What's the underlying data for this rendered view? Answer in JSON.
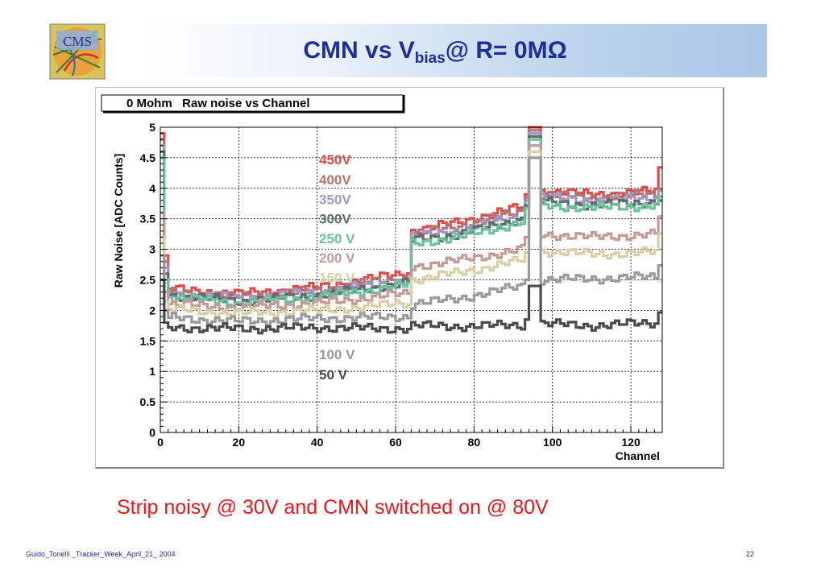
{
  "slide": {
    "title_main": "CMN vs V",
    "title_sub": "bias",
    "title_tail": "@ R= 0MΩ",
    "logo_text": "CMS",
    "caption": "Strip noisy @ 30V and CMN switched on @ 80V",
    "footer": "Guido_Tonelli _Tracker_Week_April_21_ 2004",
    "page_number": "22"
  },
  "chart_data": {
    "type": "line",
    "title": "0 Mohm   Raw noise vs Channel",
    "xlabel": "Channel",
    "ylabel": "Raw Noise [ADC Counts]",
    "xlim": [
      0,
      128
    ],
    "ylim": [
      0,
      5
    ],
    "x_ticks": [
      0,
      20,
      40,
      60,
      80,
      100,
      120
    ],
    "y_ticks": [
      0,
      0.5,
      1,
      1.5,
      2,
      2.5,
      3,
      3.5,
      4,
      4.5,
      5
    ],
    "y_tick_labels": [
      "0",
      "0.5",
      "1",
      "1.5",
      "2",
      "2.5",
      "3",
      "3.5",
      "4",
      "4.5",
      "5"
    ],
    "grid": true,
    "step": true,
    "legend_position": "center, stacked labels",
    "series": [
      {
        "name": "450V",
        "color": "#e04a4a",
        "anchors": [
          [
            0,
            4.9
          ],
          [
            1,
            2.9
          ],
          [
            2,
            2.35
          ],
          [
            20,
            2.27
          ],
          [
            40,
            2.38
          ],
          [
            63,
            2.62
          ],
          [
            64,
            3.3
          ],
          [
            76,
            3.45
          ],
          [
            92,
            3.7
          ],
          [
            93,
            3.9
          ],
          [
            94,
            5.0
          ],
          [
            96,
            5.0
          ],
          [
            97,
            3.95
          ],
          [
            110,
            3.9
          ],
          [
            126,
            3.95
          ],
          [
            127,
            4.3
          ]
        ]
      },
      {
        "name": "400V",
        "color": "#b87070",
        "anchors": [
          [
            0,
            4.8
          ],
          [
            1,
            2.8
          ],
          [
            2,
            2.3
          ],
          [
            20,
            2.22
          ],
          [
            40,
            2.33
          ],
          [
            63,
            2.55
          ],
          [
            64,
            3.25
          ],
          [
            76,
            3.38
          ],
          [
            92,
            3.62
          ],
          [
            93,
            3.85
          ],
          [
            94,
            4.95
          ],
          [
            96,
            4.95
          ],
          [
            97,
            3.9
          ],
          [
            110,
            3.85
          ],
          [
            126,
            3.9
          ],
          [
            127,
            4.05
          ]
        ]
      },
      {
        "name": "350V",
        "color": "#9f98c4",
        "anchors": [
          [
            0,
            4.7
          ],
          [
            1,
            2.7
          ],
          [
            2,
            2.28
          ],
          [
            20,
            2.2
          ],
          [
            40,
            2.3
          ],
          [
            63,
            2.5
          ],
          [
            64,
            3.2
          ],
          [
            76,
            3.32
          ],
          [
            92,
            3.55
          ],
          [
            93,
            3.8
          ],
          [
            94,
            4.9
          ],
          [
            96,
            4.9
          ],
          [
            97,
            3.85
          ],
          [
            110,
            3.8
          ],
          [
            126,
            3.85
          ],
          [
            127,
            3.95
          ]
        ]
      },
      {
        "name": "300V",
        "color": "#5e6e6e",
        "anchors": [
          [
            0,
            4.6
          ],
          [
            1,
            2.6
          ],
          [
            2,
            2.25
          ],
          [
            20,
            2.15
          ],
          [
            40,
            2.25
          ],
          [
            63,
            2.45
          ],
          [
            64,
            3.15
          ],
          [
            76,
            3.25
          ],
          [
            92,
            3.5
          ],
          [
            93,
            3.72
          ],
          [
            94,
            4.85
          ],
          [
            96,
            4.85
          ],
          [
            97,
            3.78
          ],
          [
            110,
            3.72
          ],
          [
            126,
            3.78
          ],
          [
            127,
            3.85
          ]
        ]
      },
      {
        "name": "250 V",
        "color": "#6ac29a",
        "anchors": [
          [
            0,
            4.5
          ],
          [
            1,
            2.5
          ],
          [
            2,
            2.22
          ],
          [
            20,
            2.12
          ],
          [
            40,
            2.22
          ],
          [
            63,
            2.42
          ],
          [
            64,
            3.1
          ],
          [
            76,
            3.2
          ],
          [
            92,
            3.45
          ],
          [
            93,
            3.68
          ],
          [
            94,
            4.8
          ],
          [
            96,
            4.8
          ],
          [
            97,
            3.72
          ],
          [
            110,
            3.68
          ],
          [
            126,
            3.72
          ],
          [
            127,
            3.8
          ]
        ]
      },
      {
        "name": "200 V",
        "color": "#c49a94",
        "anchors": [
          [
            0,
            3.6
          ],
          [
            1,
            2.3
          ],
          [
            2,
            2.1
          ],
          [
            20,
            2.05
          ],
          [
            40,
            2.12
          ],
          [
            63,
            2.28
          ],
          [
            64,
            2.72
          ],
          [
            76,
            2.82
          ],
          [
            92,
            3.0
          ],
          [
            93,
            3.2
          ],
          [
            94,
            4.7
          ],
          [
            96,
            4.7
          ],
          [
            97,
            3.25
          ],
          [
            110,
            3.2
          ],
          [
            126,
            3.25
          ],
          [
            127,
            3.55
          ]
        ]
      },
      {
        "name": "150 V",
        "color": "#d8d0a4",
        "anchors": [
          [
            0,
            3.2
          ],
          [
            1,
            2.15
          ],
          [
            2,
            2.02
          ],
          [
            20,
            1.95
          ],
          [
            40,
            2.0
          ],
          [
            63,
            2.12
          ],
          [
            64,
            2.5
          ],
          [
            76,
            2.62
          ],
          [
            92,
            2.82
          ],
          [
            93,
            2.95
          ],
          [
            94,
            4.6
          ],
          [
            96,
            4.6
          ],
          [
            97,
            2.97
          ],
          [
            110,
            2.92
          ],
          [
            126,
            2.95
          ],
          [
            127,
            3.2
          ]
        ]
      },
      {
        "name": "100 V",
        "color": "#9a9a9a",
        "anchors": [
          [
            0,
            2.9
          ],
          [
            1,
            2.0
          ],
          [
            2,
            1.88
          ],
          [
            20,
            1.82
          ],
          [
            40,
            1.87
          ],
          [
            63,
            1.9
          ],
          [
            64,
            2.1
          ],
          [
            76,
            2.2
          ],
          [
            92,
            2.4
          ],
          [
            93,
            2.5
          ],
          [
            94,
            4.5
          ],
          [
            96,
            4.5
          ],
          [
            97,
            2.5
          ],
          [
            110,
            2.52
          ],
          [
            126,
            2.55
          ],
          [
            127,
            2.8
          ]
        ]
      },
      {
        "name": "50 V",
        "color": "#4a4a4a",
        "anchors": [
          [
            0,
            2.5
          ],
          [
            1,
            1.8
          ],
          [
            2,
            1.72
          ],
          [
            20,
            1.7
          ],
          [
            40,
            1.72
          ],
          [
            63,
            1.7
          ],
          [
            64,
            1.75
          ],
          [
            76,
            1.74
          ],
          [
            92,
            1.76
          ],
          [
            93,
            1.85
          ],
          [
            94,
            2.4
          ],
          [
            96,
            2.4
          ],
          [
            97,
            1.78
          ],
          [
            110,
            1.75
          ],
          [
            126,
            1.8
          ],
          [
            127,
            1.95
          ]
        ]
      }
    ]
  }
}
